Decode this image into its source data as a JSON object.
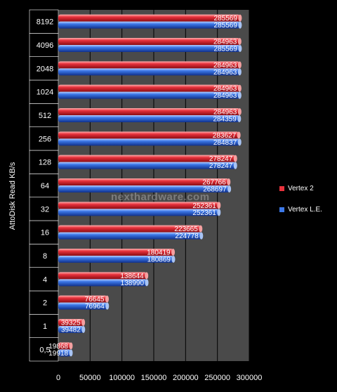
{
  "watermark": "nexthardware.com",
  "chart_data": {
    "type": "bar",
    "orientation": "horizontal",
    "ylabel": "AttoDisk Read KB/s",
    "xlabel": "",
    "xlim": [
      0,
      300000
    ],
    "xticks": [
      0,
      50000,
      100000,
      150000,
      200000,
      250000,
      300000
    ],
    "grid": true,
    "legend_position": "right",
    "categories": [
      "0,5",
      "1",
      "2",
      "4",
      "8",
      "16",
      "32",
      "64",
      "128",
      "256",
      "512",
      "1024",
      "2048",
      "4096",
      "8192"
    ],
    "series": [
      {
        "name": "Vertex 2",
        "color": "#e8323c",
        "values": [
          19868,
          39325,
          76645,
          138644,
          180419,
          223665,
          252361,
          267766,
          278247,
          283627,
          284963,
          284963,
          284963,
          284963,
          285569
        ]
      },
      {
        "name": "Vertex L.E.",
        "color": "#3c78e8",
        "values": [
          19918,
          39482,
          76964,
          138990,
          180869,
          224778,
          252361,
          268697,
          278247,
          284837,
          284359,
          284963,
          284963,
          285569,
          285569
        ]
      }
    ]
  }
}
